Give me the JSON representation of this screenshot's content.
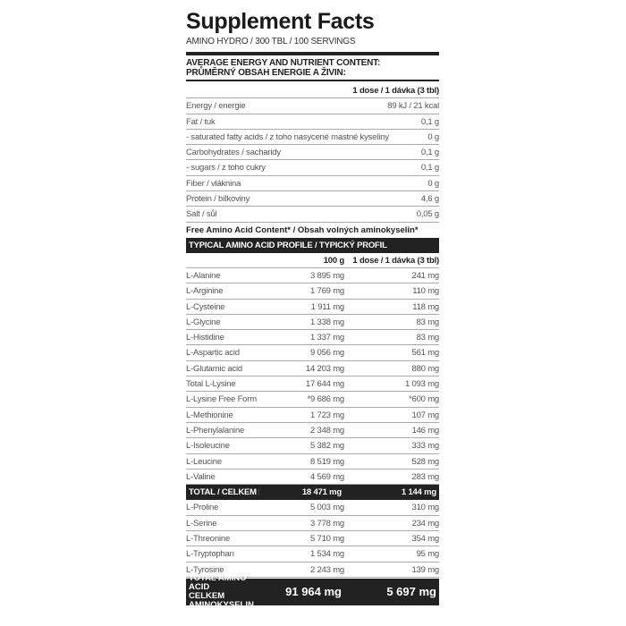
{
  "title": "Supplement Facts",
  "subtitle": "AMINO HYDRO / 300 TBL / 100 SERVINGS",
  "header_line1": "AVERAGE ENERGY AND NUTRIENT CONTENT:",
  "header_line2": "PRŮMĚRNÝ OBSAH ENERGIE A ŽIVIN:",
  "dose_header": "1 dose / 1 dávka (3 tbl)",
  "nutrients": [
    {
      "name": "Energy / energie",
      "value": "89 kJ / 21 kcal"
    },
    {
      "name": "Fat / tuk",
      "value": "0,1 g"
    },
    {
      "name": "- saturated fatty acids / z toho nasycené mastné kyseliny",
      "value": "0 g"
    },
    {
      "name": "Carbohydrates / sacharidy",
      "value": "0,1 g"
    },
    {
      "name": "- sugars / z toho cukry",
      "value": "0,1 g"
    },
    {
      "name": "Fiber / vláknina",
      "value": "0 g"
    },
    {
      "name": "Protein / bílkoviny",
      "value": "4,6 g"
    },
    {
      "name": "Salt / sůl",
      "value": "0,05 g"
    }
  ],
  "free_amino_note": "Free Amino Acid Content* / Obsah volných aminokyselin*",
  "profile_header": "TYPICAL AMINO ACID PROFILE / TYPICKÝ PROFIL AMINOKYSELIN:",
  "col_100g": "100 g",
  "col_dose": "1 dose / 1 dávka (3 tbl)",
  "amino_a": [
    {
      "name": "L-Alanine",
      "per100": "3 895 mg",
      "dose": "241 mg"
    },
    {
      "name": "L-Arginine",
      "per100": "1 769 mg",
      "dose": "110 mg"
    },
    {
      "name": "L-Cysteine",
      "per100": "1 911 mg",
      "dose": "118 mg"
    },
    {
      "name": "L-Glycine",
      "per100": "1 338 mg",
      "dose": "83 mg"
    },
    {
      "name": "L-Histidine",
      "per100": "1 337 mg",
      "dose": "83 mg"
    },
    {
      "name": "L-Aspartic acid",
      "per100": "9 056 mg",
      "dose": "561 mg"
    },
    {
      "name": "L-Glutamic acid",
      "per100": "14 203 mg",
      "dose": "880 mg"
    },
    {
      "name": "Total L-Lysine",
      "per100": "17 644 mg",
      "dose": "1 093 mg"
    },
    {
      "name": "L-Lysine Free Form",
      "per100": "*9 686 mg",
      "dose": "*600 mg"
    },
    {
      "name": "L-Methionine",
      "per100": "1 723 mg",
      "dose": "107 mg"
    },
    {
      "name": "L-Phenylalanine",
      "per100": "2 348 mg",
      "dose": "146 mg"
    },
    {
      "name": "L-Isoleucine",
      "per100": "5 382 mg",
      "dose": "333 mg"
    },
    {
      "name": "L-Leucine",
      "per100": "8 519 mg",
      "dose": "528 mg"
    },
    {
      "name": "L-Valine",
      "per100": "4 569 mg",
      "dose": "283 mg"
    }
  ],
  "bcaa_total": {
    "name": "TOTAL / CELKEM BCAA",
    "per100": "18 471 mg",
    "dose": "1 144 mg"
  },
  "amino_b": [
    {
      "name": "L-Proline",
      "per100": "5 003 mg",
      "dose": "310 mg"
    },
    {
      "name": "L-Serine",
      "per100": "3 778 mg",
      "dose": "234 mg"
    },
    {
      "name": "L-Threonine",
      "per100": "5 710 mg",
      "dose": "354 mg"
    },
    {
      "name": "L-Tryptophan",
      "per100": "1 534 mg",
      "dose": "95 mg"
    },
    {
      "name": "L-Tyrosine",
      "per100": "2 243 mg",
      "dose": "139 mg"
    }
  ],
  "grand_total": {
    "line1": "TOTAL AMINO ACID",
    "line2": "CELKEM AMINOKYSELIN",
    "per100": "91 964 mg",
    "dose": "5 697 mg"
  }
}
